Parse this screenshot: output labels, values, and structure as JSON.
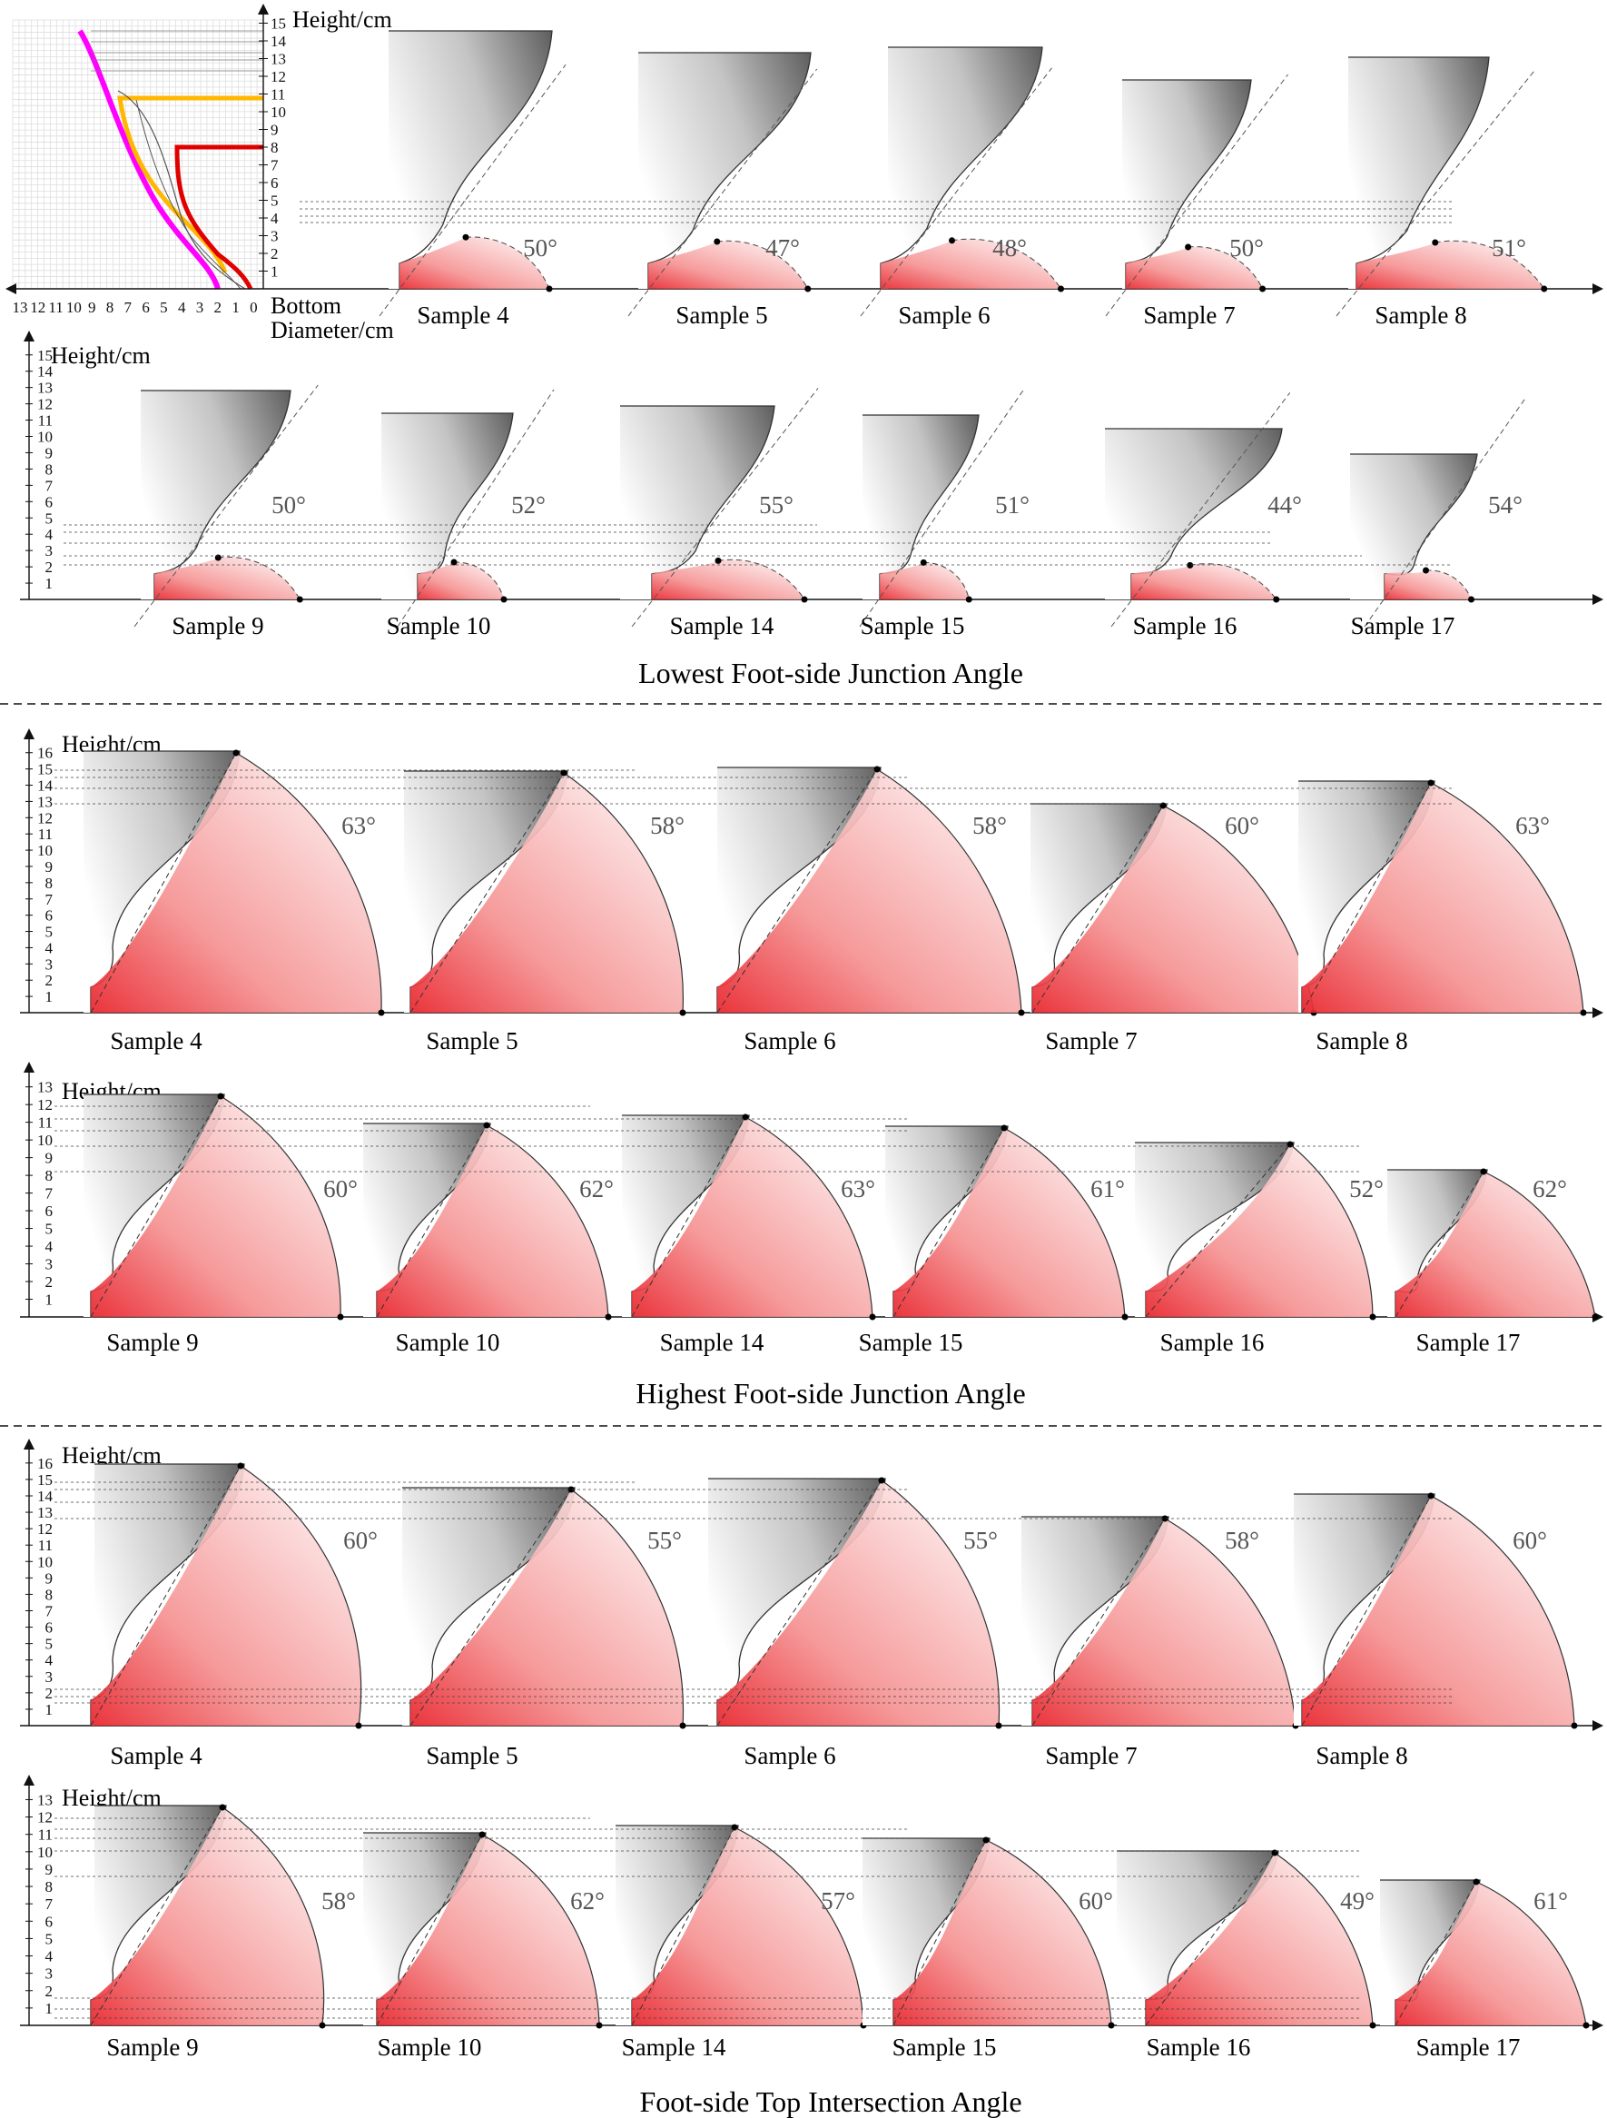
{
  "labels": {
    "height_axis": "Height/cm",
    "bottom_diameter_line1": "Bottom",
    "bottom_diameter_line2": "Diameter/cm"
  },
  "inset": {
    "bottom_ticks": [
      "13",
      "12",
      "11",
      "10",
      "9",
      "8",
      "7",
      "6",
      "5",
      "4",
      "3",
      "2",
      "1",
      "0"
    ],
    "height_ticks": [
      "1",
      "2",
      "3",
      "4",
      "5",
      "6",
      "7",
      "8",
      "9",
      "10",
      "11",
      "12",
      "13",
      "14",
      "15"
    ],
    "highlight_heights": [
      {
        "color": "#ffb800",
        "height": 10.2
      },
      {
        "color": "#e00000",
        "height": 7.3
      }
    ],
    "profile_colors": [
      "#ff00ff",
      "#ffb800",
      "#e00000",
      "#555555"
    ]
  },
  "sections": [
    {
      "title": "Lowest Foot-side Junction Angle",
      "rows": [
        {
          "samples": [
            {
              "name": "Sample 4",
              "angle": "50°"
            },
            {
              "name": "Sample 5",
              "angle": "47°"
            },
            {
              "name": "Sample 6",
              "angle": "48°"
            },
            {
              "name": "Sample 7",
              "angle": "50°"
            },
            {
              "name": "Sample 8",
              "angle": "51°"
            }
          ]
        },
        {
          "samples": [
            {
              "name": "Sample 9",
              "angle": "50°"
            },
            {
              "name": "Sample 10",
              "angle": "52°"
            },
            {
              "name": "Sample 14",
              "angle": "55°"
            },
            {
              "name": "Sample 15",
              "angle": "51°"
            },
            {
              "name": "Sample 16",
              "angle": "44°"
            },
            {
              "name": "Sample 17",
              "angle": "54°"
            }
          ]
        }
      ]
    },
    {
      "title": "Highest Foot-side Junction Angle",
      "rows": [
        {
          "samples": [
            {
              "name": "Sample 4",
              "angle": "63°"
            },
            {
              "name": "Sample 5",
              "angle": "58°"
            },
            {
              "name": "Sample 6",
              "angle": "58°"
            },
            {
              "name": "Sample 7",
              "angle": "60°"
            },
            {
              "name": "Sample 8",
              "angle": "63°"
            }
          ]
        },
        {
          "samples": [
            {
              "name": "Sample 9",
              "angle": "60°"
            },
            {
              "name": "Sample 10",
              "angle": "62°"
            },
            {
              "name": "Sample 14",
              "angle": "63°"
            },
            {
              "name": "Sample 15",
              "angle": "61°"
            },
            {
              "name": "Sample 16",
              "angle": "52°"
            },
            {
              "name": "Sample 17",
              "angle": "62°"
            }
          ]
        }
      ]
    },
    {
      "title": "Foot-side Top Intersection Angle",
      "rows": [
        {
          "samples": [
            {
              "name": "Sample 4",
              "angle": "60°"
            },
            {
              "name": "Sample 5",
              "angle": "55°"
            },
            {
              "name": "Sample 6",
              "angle": "55°"
            },
            {
              "name": "Sample 7",
              "angle": "58°"
            },
            {
              "name": "Sample 8",
              "angle": "60°"
            }
          ]
        },
        {
          "samples": [
            {
              "name": "Sample 9",
              "angle": "58°"
            },
            {
              "name": "Sample 10",
              "angle": "62°"
            },
            {
              "name": "Sample 14",
              "angle": "57°"
            },
            {
              "name": "Sample 15",
              "angle": "60°"
            },
            {
              "name": "Sample 16",
              "angle": "49°"
            },
            {
              "name": "Sample 17",
              "angle": "61°"
            }
          ]
        }
      ]
    }
  ]
}
